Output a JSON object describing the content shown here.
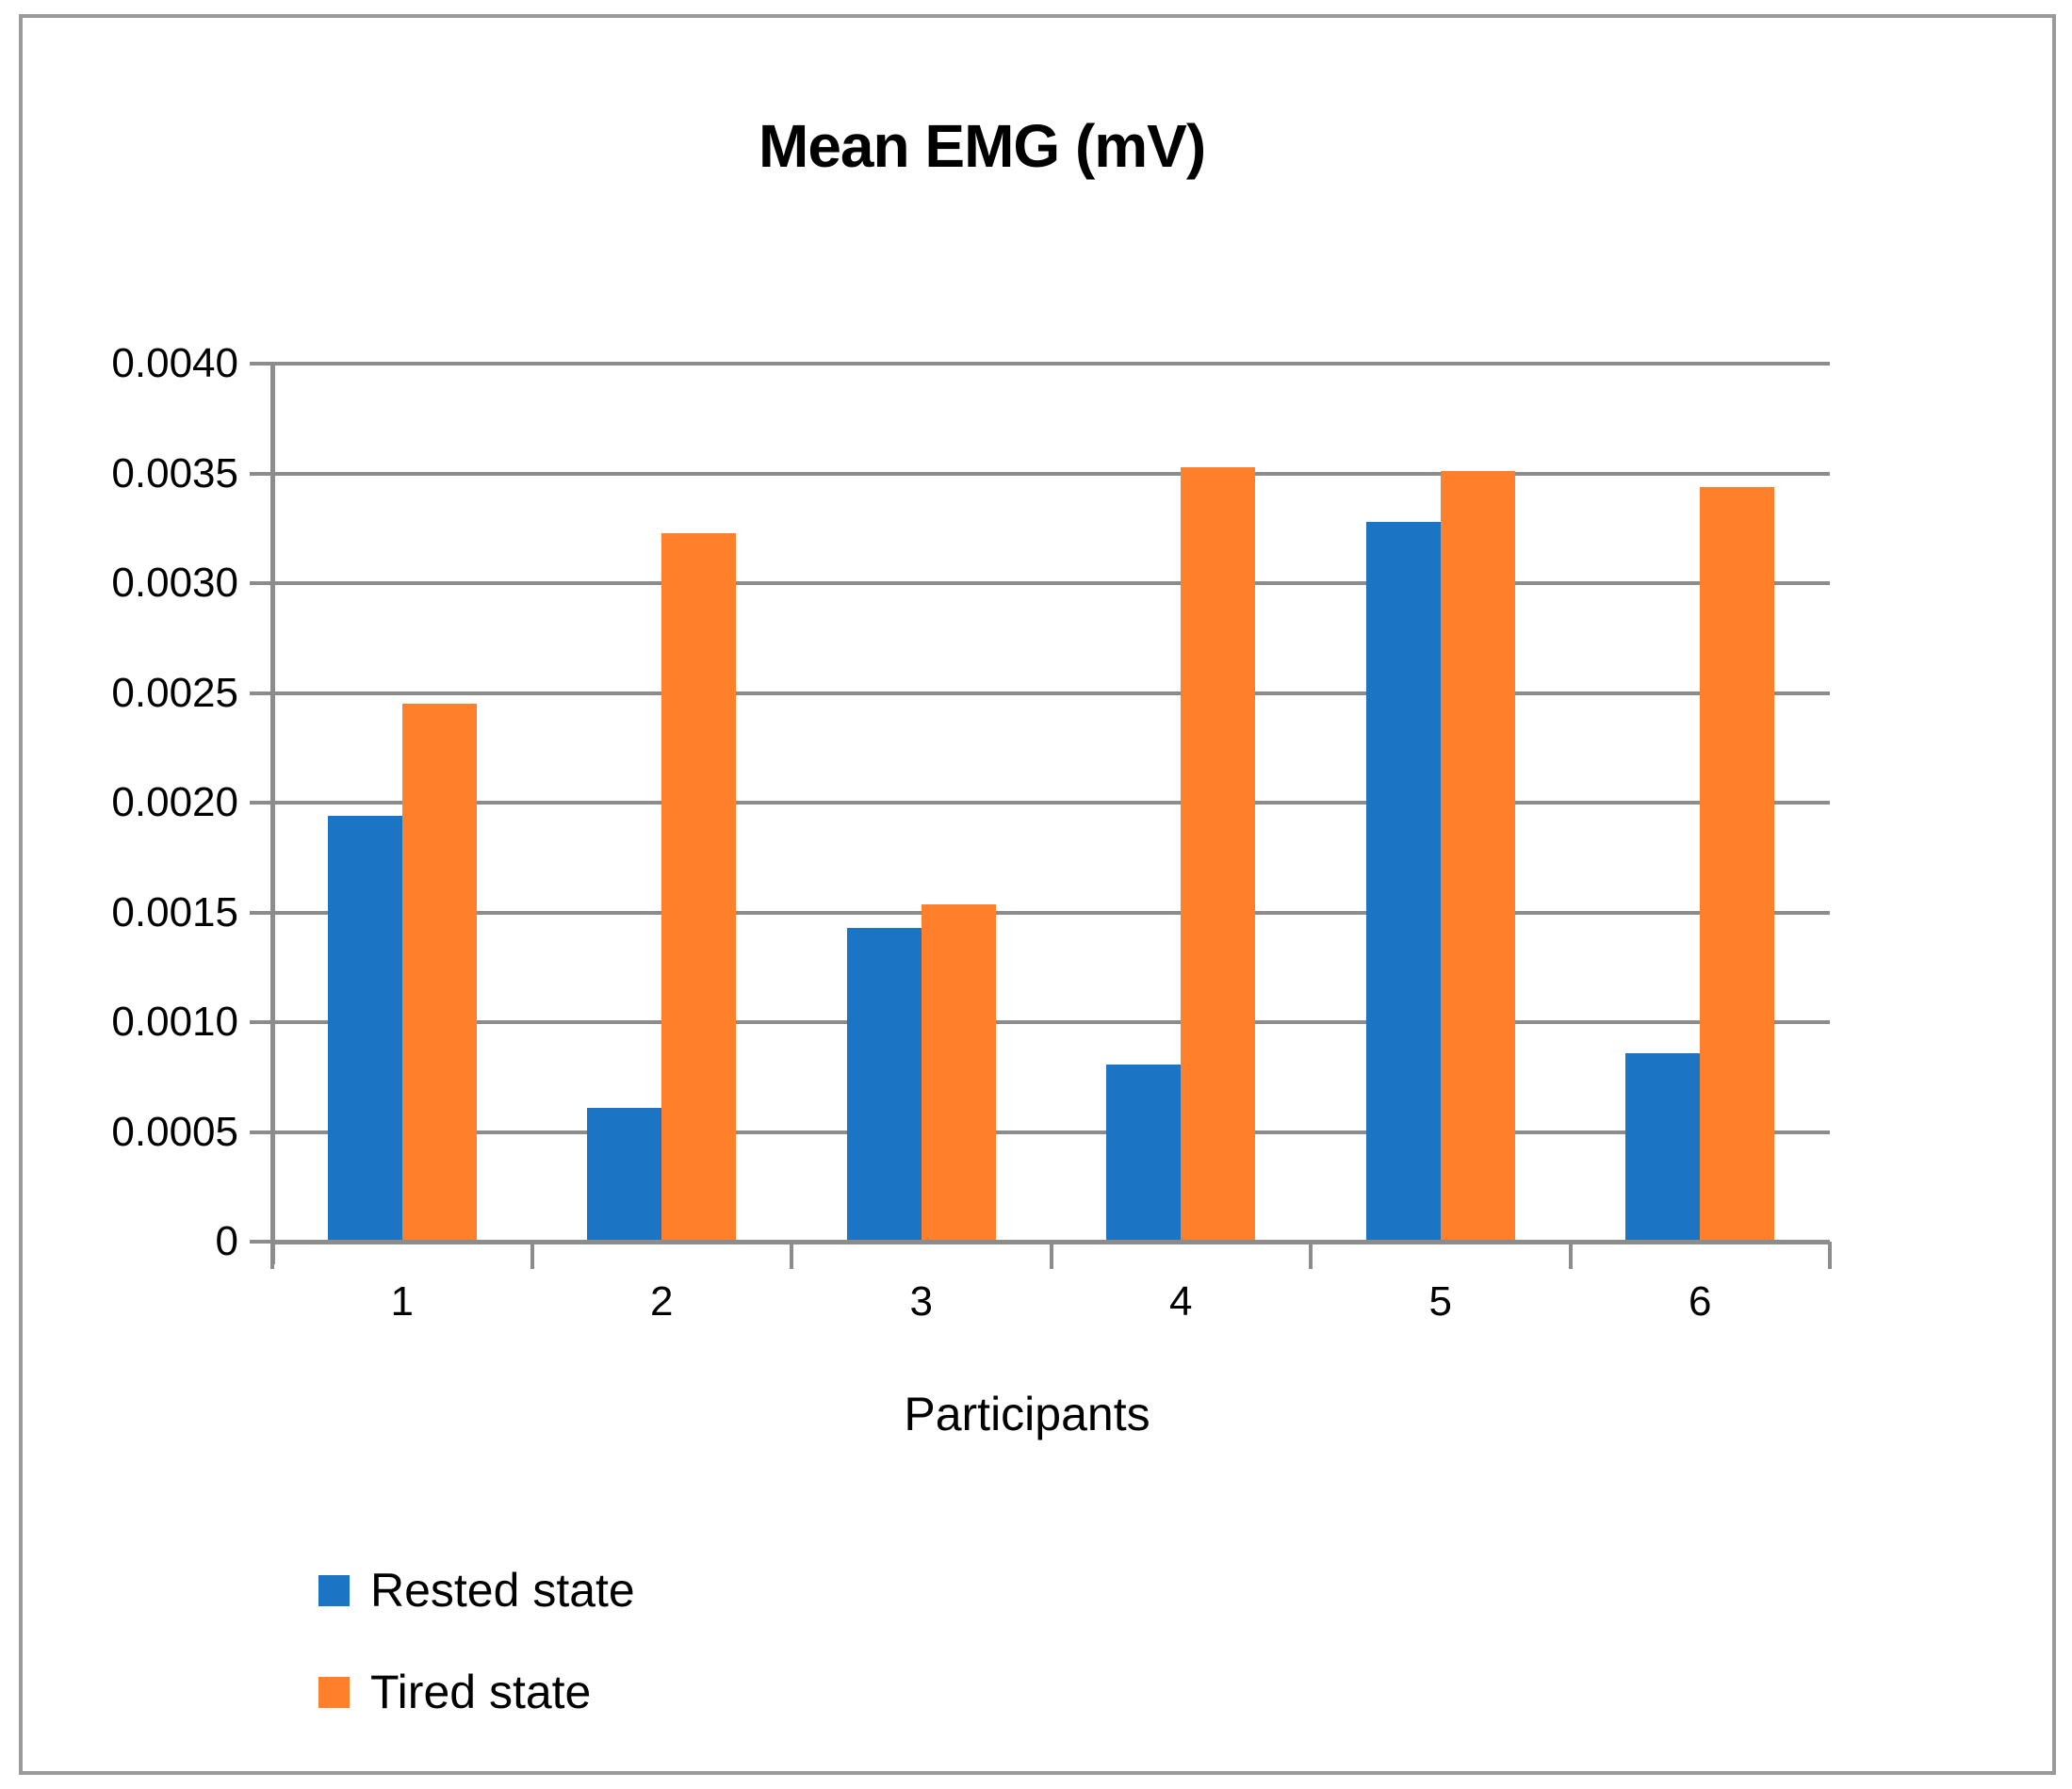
{
  "chart_data": {
    "type": "bar",
    "title": "Mean EMG (mV)",
    "xlabel": "Participants",
    "ylabel": "",
    "categories": [
      "1",
      "2",
      "3",
      "4",
      "5",
      "6"
    ],
    "series": [
      {
        "name": "Rested state",
        "color": "#1c75c4",
        "values": [
          0.00193,
          0.0006,
          0.00142,
          0.0008,
          0.00327,
          0.00085
        ]
      },
      {
        "name": "Tired state",
        "color": "#ff7f2b",
        "values": [
          0.00244,
          0.00322,
          0.00153,
          0.00352,
          0.0035,
          0.00343
        ]
      }
    ],
    "ylim": [
      0,
      0.004
    ],
    "ytick_step": 0.0005,
    "ytick_labels": [
      "0",
      "0.0005",
      "0.0010",
      "0.0015",
      "0.0020",
      "0.0025",
      "0.0030",
      "0.0035",
      "0.0040"
    ],
    "grid": true,
    "legend_position": "bottom-left"
  },
  "colors": {
    "gridline": "#8c8c8c",
    "axis": "#8c8c8c",
    "frame_border": "#9a9a9a",
    "background": "#ffffff",
    "text": "#000000"
  }
}
